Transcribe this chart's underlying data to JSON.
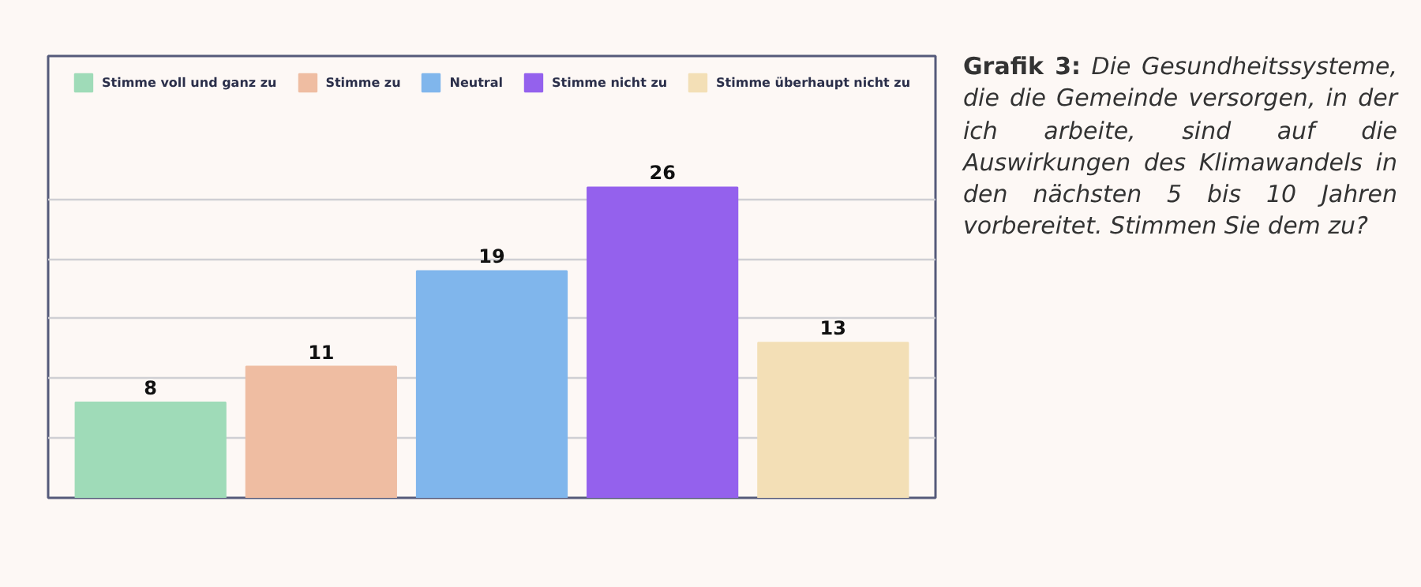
{
  "chart_data": {
    "type": "bar",
    "title": "Grafik 3:",
    "subtitle": "Die Gesundheitssysteme, die die Gemeinde versorgen, in der ich arbeite, sind auf die Auswirkungen des Klimawandels in den nächsten 5 bis 10 Jahren vorbereitet. Stimmen Sie dem zu?",
    "categories": [
      null,
      null,
      null,
      null,
      null
    ],
    "series": [
      {
        "name": "Stimme voll und ganz zu",
        "color": "#9fdbb8",
        "values": [
          8,
          null,
          null,
          null,
          null
        ]
      },
      {
        "name": "Stimme zu",
        "color": "#efbda2",
        "values": [
          null,
          11,
          null,
          null,
          null
        ]
      },
      {
        "name": "Neutral",
        "color": "#80b6ec",
        "values": [
          null,
          null,
          19,
          null,
          null
        ]
      },
      {
        "name": "Stimme nicht zu",
        "color": "#9461ed",
        "values": [
          null,
          null,
          null,
          26,
          null
        ]
      },
      {
        "name": "Stimme überhaupt nicht zu",
        "color": "#f3dfb6",
        "values": [
          null,
          null,
          null,
          null,
          13
        ]
      }
    ],
    "stacked": true,
    "ylim": [
      0,
      37
    ],
    "yticks": [
      {
        "value": 5,
        "label": null
      },
      {
        "value": 10,
        "label": null
      },
      {
        "value": 15,
        "label": null
      },
      {
        "value": 20,
        "label": null
      },
      {
        "value": 25,
        "label": null
      }
    ],
    "grid": "y",
    "legend": "top",
    "tick_labels": false,
    "data_labels": true
  }
}
